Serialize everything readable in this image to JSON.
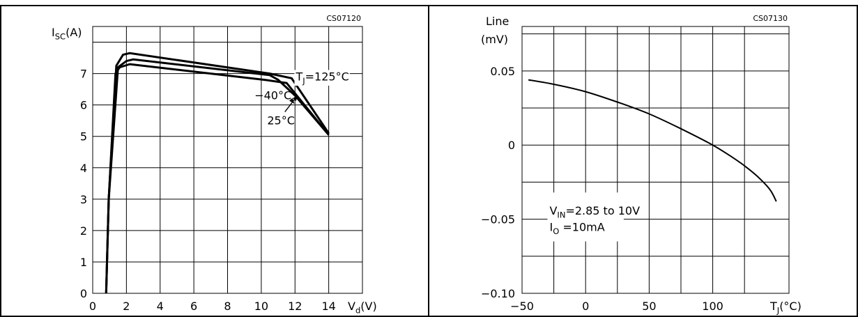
{
  "chart_data": [
    {
      "type": "line",
      "code": "CS07120",
      "y_label": {
        "main": "I",
        "sub": "SC",
        "unit": "(A)"
      },
      "x_label": {
        "main": "V",
        "sub": "d",
        "unit": "(V)"
      },
      "xlim": [
        0,
        16
      ],
      "ylim": [
        0,
        8.5
      ],
      "x_ticks": [
        0,
        2,
        4,
        6,
        8,
        10,
        12,
        14
      ],
      "y_ticks": [
        0,
        1,
        2,
        3,
        4,
        5,
        6,
        7
      ],
      "x_grid": [
        2,
        4,
        6,
        8,
        10,
        12,
        14
      ],
      "y_grid": [
        1,
        2,
        3,
        4,
        5,
        6,
        7,
        8
      ],
      "grid": true,
      "series": [
        {
          "name": "−40°C",
          "x": [
            0.8,
            0.95,
            1.5,
            2.0,
            2.4,
            10.5,
            11.0,
            12.0,
            14.0
          ],
          "y": [
            0.0,
            3.0,
            7.2,
            7.4,
            7.45,
            6.95,
            6.8,
            6.3,
            5.05
          ]
        },
        {
          "name": "25°C",
          "x": [
            0.8,
            0.95,
            1.35,
            1.6,
            2.2,
            10.2,
            11.5,
            14.0
          ],
          "y": [
            0.0,
            3.0,
            7.0,
            7.2,
            7.3,
            6.8,
            6.7,
            5.05
          ]
        },
        {
          "name": "T_J=125°C",
          "x": [
            0.8,
            0.95,
            1.4,
            1.8,
            2.2,
            10.5,
            11.8,
            14.0
          ],
          "y": [
            0.0,
            3.0,
            7.25,
            7.6,
            7.65,
            7.0,
            6.85,
            5.1
          ]
        }
      ],
      "annotations": [
        {
          "id": "t125",
          "prefix": "T",
          "sub": "J",
          "text": "=125°C",
          "x": 12.05,
          "y": 6.78
        },
        {
          "id": "m40",
          "text": "−40°C",
          "x": 9.6,
          "y": 6.18
        },
        {
          "id": "p25",
          "text": "25°C",
          "x": 10.35,
          "y": 5.38
        }
      ],
      "arrows": [
        {
          "from": [
            11.4,
            5.78
          ],
          "to": [
            12.15,
            6.3
          ]
        },
        {
          "from": [
            11.75,
            6.18
          ],
          "to": [
            11.95,
            6.05
          ]
        }
      ]
    },
    {
      "type": "line",
      "code": "CS07130",
      "y_label_lines": [
        "Line",
        "(mV)"
      ],
      "x_label": {
        "main": "T",
        "sub": "J",
        "unit": "(°C)"
      },
      "xlim": [
        -50,
        160
      ],
      "ylim": [
        -0.1,
        0.08
      ],
      "x_ticks": [
        -50,
        0,
        50,
        100
      ],
      "x_tick_labels": [
        "−50",
        "0",
        "50",
        "100"
      ],
      "y_ticks": [
        -0.1,
        -0.05,
        0,
        0.05
      ],
      "y_tick_labels": [
        "−0.10",
        "−0.05",
        "0",
        "0.05"
      ],
      "x_grid": [
        -25,
        0,
        25,
        50,
        75,
        100,
        125
      ],
      "y_grid": [
        -0.075,
        -0.05,
        -0.025,
        0,
        0.025,
        0.05,
        0.075
      ],
      "grid": true,
      "series": [
        {
          "x": [
            -45,
            -25,
            0,
            25,
            50,
            75,
            100,
            115,
            125,
            135,
            145,
            150
          ],
          "y": [
            0.044,
            0.041,
            0.036,
            0.029,
            0.021,
            0.011,
            0.0,
            -0.008,
            -0.014,
            -0.021,
            -0.03,
            -0.038
          ]
        }
      ],
      "legend_box": {
        "line1": {
          "prefix": "V",
          "sub": "IN",
          "text": "=2.85  to  10V"
        },
        "line2": {
          "prefix": "I",
          "sub": "O",
          "text": " =10mA"
        }
      }
    }
  ]
}
